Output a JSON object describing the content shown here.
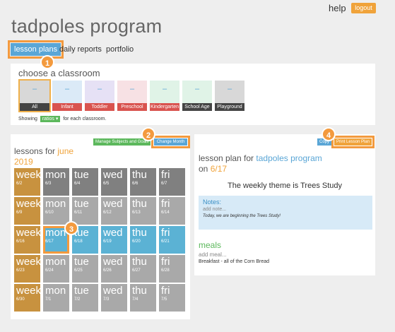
{
  "header": {
    "help": "help",
    "logout": "logout",
    "title": "tadpoles program"
  },
  "tabs": {
    "lesson_plans": "lesson plans",
    "daily_reports": "daily reports",
    "portfolio": "portfolio"
  },
  "badges": [
    "1",
    "2",
    "3",
    "4"
  ],
  "classroom": {
    "heading": "choose a classroom",
    "tiles": [
      {
        "label": "All",
        "bg": "#d8d8d8",
        "label_bg": "#444444",
        "mark": "–"
      },
      {
        "label": "Infant",
        "bg": "#dbeaf7",
        "label_bg": "#d9534f",
        "mark": "–"
      },
      {
        "label": "Toddler",
        "bg": "#e6e1f5",
        "label_bg": "#d9534f",
        "mark": "–"
      },
      {
        "label": "Preschool",
        "bg": "#f7e1e4",
        "label_bg": "#d9534f",
        "mark": "–"
      },
      {
        "label": "Kindergarten",
        "bg": "#e0f3e7",
        "label_bg": "#d9534f",
        "mark": "–"
      },
      {
        "label": "School Age",
        "bg": "#e0f3e7",
        "label_bg": "#444444",
        "mark": "–"
      },
      {
        "label": "Playground",
        "bg": "#d8d8d8",
        "label_bg": "#444444",
        "mark": "–"
      }
    ],
    "showing_prefix": "Showing",
    "showing_select": "ratios ▾",
    "showing_suffix": "for each classroom."
  },
  "lessons": {
    "manage_button": "Manage Subjects and Goals",
    "change_button": "Change Month",
    "heading_prefix": "lessons for",
    "month": "june",
    "year": "2019",
    "rows": [
      [
        {
          "name": "week",
          "date": "6/2",
          "kind": "week"
        },
        {
          "name": "mon",
          "date": "6/3",
          "kind": "dark"
        },
        {
          "name": "tue",
          "date": "6/4",
          "kind": "dark"
        },
        {
          "name": "wed",
          "date": "6/5",
          "kind": "dark"
        },
        {
          "name": "thu",
          "date": "6/6",
          "kind": "dark"
        },
        {
          "name": "fri",
          "date": "6/7",
          "kind": "dark"
        }
      ],
      [
        {
          "name": "week",
          "date": "6/9",
          "kind": "week"
        },
        {
          "name": "mon",
          "date": "6/10",
          "kind": "gray"
        },
        {
          "name": "tue",
          "date": "6/11",
          "kind": "gray"
        },
        {
          "name": "wed",
          "date": "6/12",
          "kind": "gray"
        },
        {
          "name": "thu",
          "date": "6/13",
          "kind": "gray"
        },
        {
          "name": "fri",
          "date": "6/14",
          "kind": "gray"
        }
      ],
      [
        {
          "name": "week",
          "date": "6/16",
          "kind": "week"
        },
        {
          "name": "mon",
          "date": "6/17",
          "kind": "blue",
          "current": true
        },
        {
          "name": "tue",
          "date": "6/18",
          "kind": "blue"
        },
        {
          "name": "wed",
          "date": "6/19",
          "kind": "blue"
        },
        {
          "name": "thu",
          "date": "6/20",
          "kind": "blue"
        },
        {
          "name": "fri",
          "date": "6/21",
          "kind": "blue"
        }
      ],
      [
        {
          "name": "week",
          "date": "6/23",
          "kind": "week"
        },
        {
          "name": "mon",
          "date": "6/24",
          "kind": "gray"
        },
        {
          "name": "tue",
          "date": "6/25",
          "kind": "gray"
        },
        {
          "name": "wed",
          "date": "6/26",
          "kind": "gray"
        },
        {
          "name": "thu",
          "date": "6/27",
          "kind": "gray"
        },
        {
          "name": "fri",
          "date": "6/28",
          "kind": "gray"
        }
      ],
      [
        {
          "name": "week",
          "date": "6/30",
          "kind": "week"
        },
        {
          "name": "mon",
          "date": "7/1",
          "kind": "gray"
        },
        {
          "name": "tue",
          "date": "7/2",
          "kind": "gray"
        },
        {
          "name": "wed",
          "date": "7/3",
          "kind": "gray"
        },
        {
          "name": "thu",
          "date": "7/4",
          "kind": "gray"
        },
        {
          "name": "fri",
          "date": "7/5",
          "kind": "gray"
        }
      ]
    ]
  },
  "plan": {
    "copy_button": "Copy",
    "print_button": "Print Lesson Plan",
    "title_prefix": "lesson plan for",
    "program": "tadpoles program",
    "on_prefix": "on",
    "date": "6/17",
    "theme": "The weekly theme is Trees Study",
    "notes_heading": "Notes:",
    "notes_add": "add note...",
    "notes_text": "Today, we are beginning the Trees Study!",
    "meals_heading": "meals",
    "meals_add": "add meal...",
    "meals_item": "Breakfast - all of the Corn Bread"
  },
  "colors": {
    "accent_blue": "#5aa6d6",
    "accent_orange": "#f0a33a",
    "callout_orange": "#f39a3e",
    "green": "#5cb85c"
  }
}
